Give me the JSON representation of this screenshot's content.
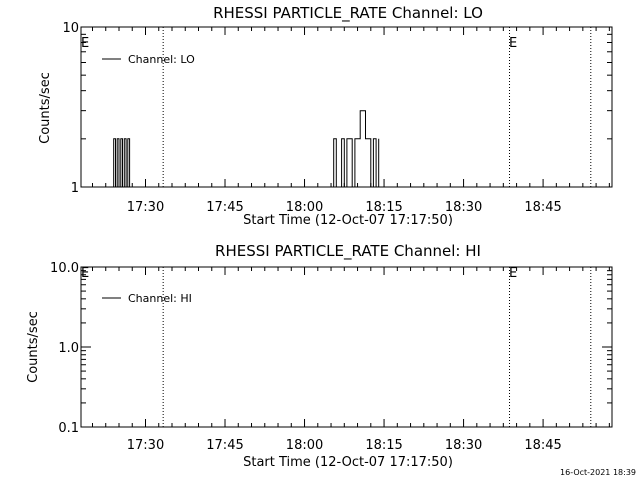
{
  "footer": {
    "timestamp": "16-Oct-2021 18:39"
  },
  "chart_data": [
    {
      "type": "line",
      "title": "RHESSI PARTICLE_RATE Channel: LO",
      "xlabel": "Start Time (12-Oct-07 17:17:50)",
      "ylabel": "Counts/sec",
      "yscale": "log",
      "xlim": [
        "17:17:50",
        "18:58:00"
      ],
      "ylim": [
        1,
        10
      ],
      "x_ticks": [
        "17:30",
        "17:45",
        "18:00",
        "18:15",
        "18:30",
        "18:45"
      ],
      "y_ticks": [
        "1",
        "10"
      ],
      "legend": {
        "label": "Channel: LO",
        "position": "top-left"
      },
      "event_markers": [
        {
          "time": "17:17:50",
          "label": "E"
        },
        {
          "time": "17:33:20",
          "label": ""
        },
        {
          "time": "18:38:40",
          "label": "E"
        },
        {
          "time": "18:54:00",
          "label": ""
        }
      ],
      "series": [
        {
          "x": [
            "17:23:30",
            "17:24:00",
            "17:24:20",
            "17:24:40",
            "17:25:00",
            "17:25:20",
            "17:25:40",
            "17:26:00",
            "17:26:20",
            "17:26:40",
            "17:27:00",
            "18:05:00",
            "18:05:30",
            "18:06:00",
            "18:07:00",
            "18:07:30",
            "18:08:00",
            "18:09:00",
            "18:09:30",
            "18:10:00",
            "18:10:30",
            "18:11:00",
            "18:11:30",
            "18:12:00",
            "18:12:30",
            "18:13:00",
            "18:13:30",
            "18:14:00"
          ],
          "y": [
            1,
            2,
            1,
            2,
            1,
            2,
            1,
            2,
            1,
            2,
            1,
            1,
            2,
            1,
            2,
            1,
            2,
            1,
            2,
            2,
            3,
            3,
            2,
            2,
            1,
            2,
            1,
            2
          ]
        }
      ]
    },
    {
      "type": "line",
      "title": "RHESSI PARTICLE_RATE Channel: HI",
      "xlabel": "Start Time (12-Oct-07 17:17:50)",
      "ylabel": "Counts/sec",
      "yscale": "log",
      "xlim": [
        "17:17:50",
        "18:58:00"
      ],
      "ylim": [
        0.1,
        10
      ],
      "x_ticks": [
        "17:30",
        "17:45",
        "18:00",
        "18:15",
        "18:30",
        "18:45"
      ],
      "y_ticks": [
        "0.1",
        "1.0",
        "10.0"
      ],
      "legend": {
        "label": "Channel: HI",
        "position": "top-left"
      },
      "event_markers": [
        {
          "time": "17:17:50",
          "label": "E"
        },
        {
          "time": "17:33:20",
          "label": ""
        },
        {
          "time": "18:38:40",
          "label": "E"
        },
        {
          "time": "18:54:00",
          "label": ""
        }
      ],
      "series": []
    }
  ]
}
